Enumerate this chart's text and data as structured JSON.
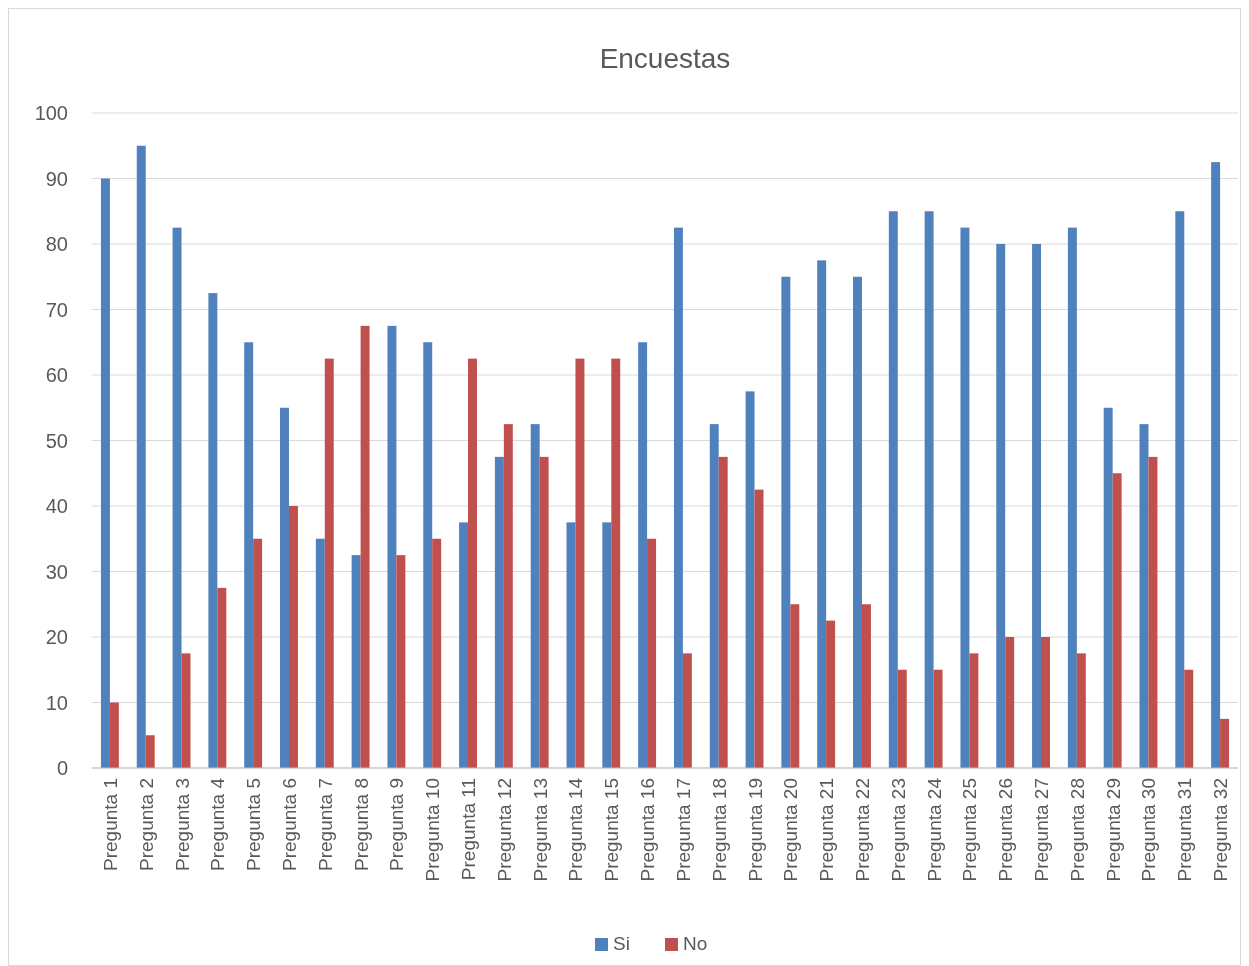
{
  "chart_data": {
    "type": "bar",
    "title": "Encuestas",
    "categories": [
      "Pregunta 1",
      "Pregunta 2",
      "Pregunta 3",
      "Pregunta 4",
      "Pregunta 5",
      "Pregunta 6",
      "Pregunta 7",
      "Pregunta 8",
      "Pregunta 9",
      "Pregunta 10",
      "Pregunta 11",
      "Pregunta 12",
      "Pregunta 13",
      "Pregunta 14",
      "Pregunta 15",
      "Pregunta 16",
      "Pregunta 17",
      "Pregunta 18",
      "Pregunta 19",
      "Pregunta 20",
      "Pregunta 21",
      "Pregunta 22",
      "Pregunta 23",
      "Pregunta 24",
      "Pregunta 25",
      "Pregunta 26",
      "Pregunta 27",
      "Pregunta 28",
      "Pregunta 29",
      "Pregunta 30",
      "Pregunta 31",
      "Pregunta 32"
    ],
    "series": [
      {
        "name": "Si",
        "color": "#4f81bd",
        "values": [
          90,
          95,
          82.5,
          72.5,
          65,
          55,
          35,
          32.5,
          67.5,
          65,
          37.5,
          47.5,
          52.5,
          37.5,
          37.5,
          65,
          82.5,
          52.5,
          57.5,
          75,
          77.5,
          75,
          85,
          85,
          82.5,
          80,
          80,
          82.5,
          55,
          52.5,
          85,
          92.5
        ]
      },
      {
        "name": "No",
        "color": "#c0504d",
        "values": [
          10,
          5,
          17.5,
          27.5,
          35,
          40,
          62.5,
          67.5,
          32.5,
          35,
          62.5,
          52.5,
          47.5,
          62.5,
          62.5,
          35,
          17.5,
          47.5,
          42.5,
          25,
          22.5,
          25,
          15,
          15,
          17.5,
          20,
          20,
          17.5,
          45,
          47.5,
          15,
          7.5
        ]
      }
    ],
    "ylim": [
      0,
      100
    ],
    "yticks": [
      0,
      10,
      20,
      30,
      40,
      50,
      60,
      70,
      80,
      90,
      100
    ],
    "grid": "y",
    "legend": "bottom"
  }
}
